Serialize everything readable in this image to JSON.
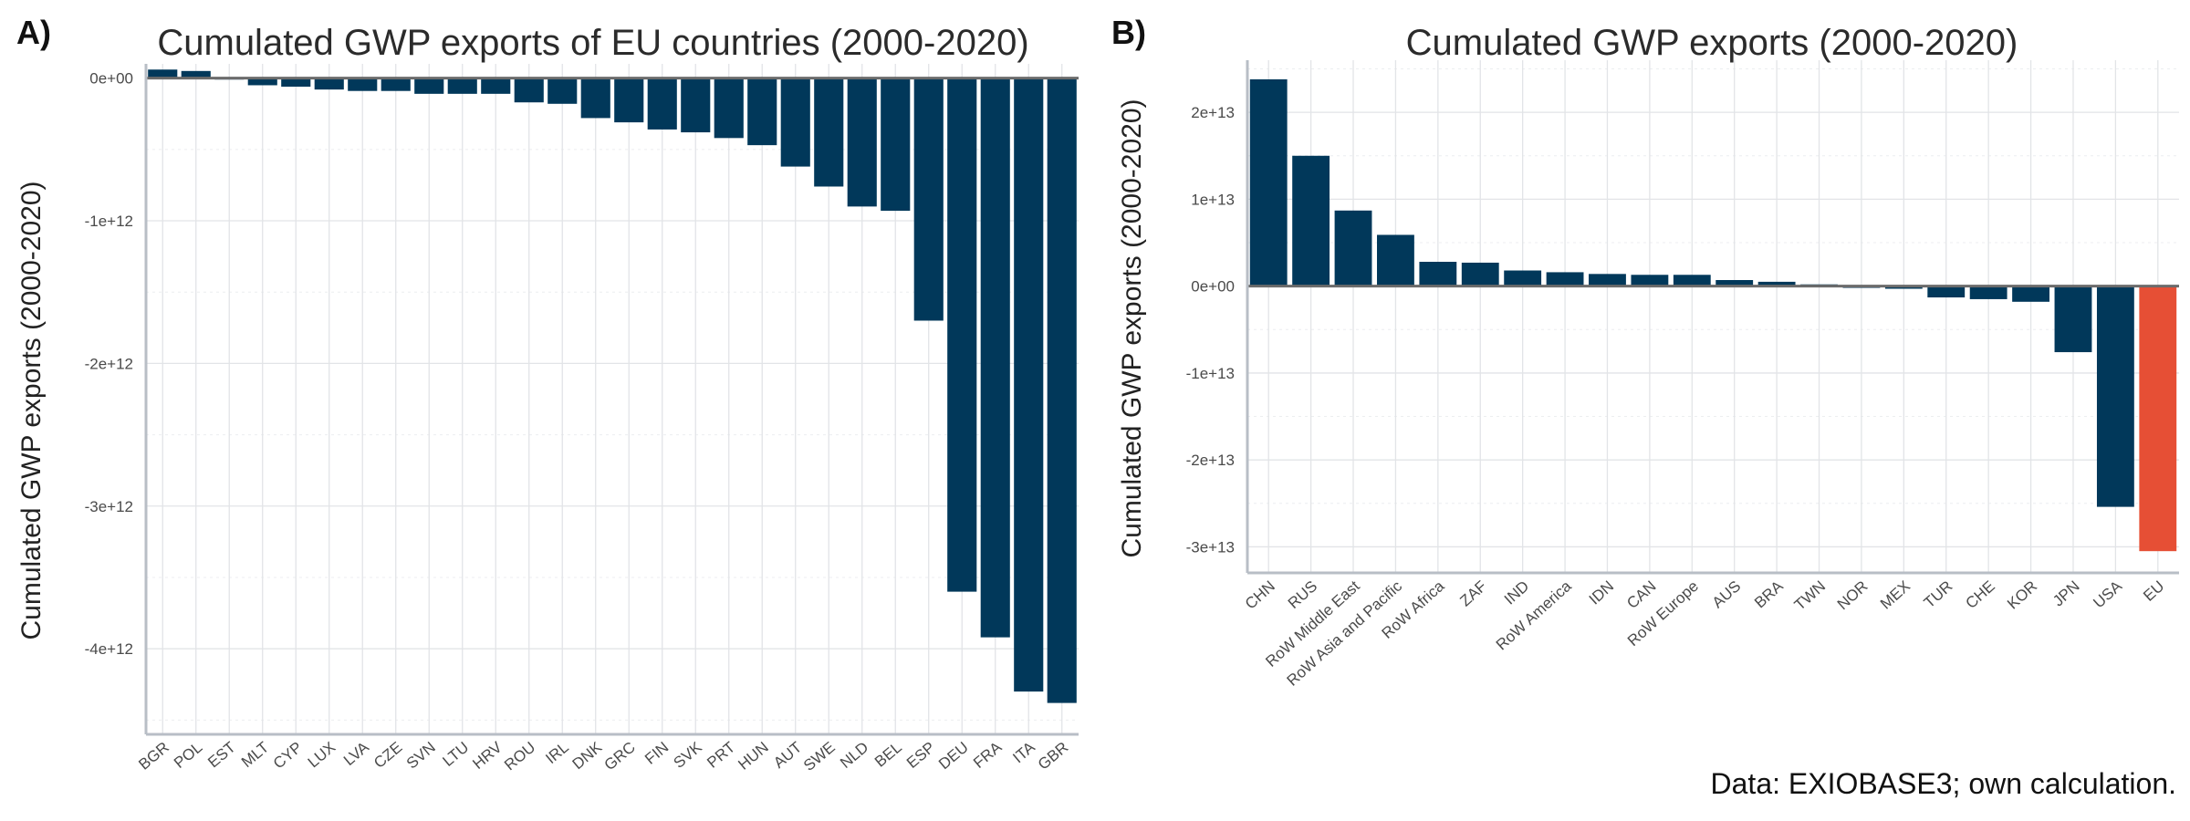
{
  "panels": [
    {
      "letter": "A)",
      "title": "Cumulated GWP exports of EU countries (2000-2020)",
      "ylabel": "Cumulated GWP exports (2000-2020)"
    },
    {
      "letter": "B)",
      "title": "Cumulated GWP exports (2000-2020)",
      "ylabel": "Cumulated GWP exports (2000-2020)"
    }
  ],
  "caption": "Data: EXIOBASE3; own calculation.",
  "colors": {
    "bar": "#01385a",
    "highlight": "#e64f35"
  },
  "chart_data": [
    {
      "type": "bar",
      "title": "Cumulated GWP exports of EU countries (2000-2020)",
      "xlabel": "",
      "ylabel": "Cumulated GWP exports (2000-2020)",
      "ylim": [
        -4600000000000.0,
        100000000000.0
      ],
      "yticks": [
        0,
        -1000000000000.0,
        -2000000000000.0,
        -3000000000000.0,
        -4000000000000.0
      ],
      "ytick_labels": [
        "0e+00",
        "-1e+12",
        "-2e+12",
        "-3e+12",
        "-4e+12"
      ],
      "grid": true,
      "categories": [
        "BGR",
        "POL",
        "EST",
        "MLT",
        "CYP",
        "LUX",
        "LVA",
        "CZE",
        "SVN",
        "LTU",
        "HRV",
        "ROU",
        "IRL",
        "DNK",
        "GRC",
        "FIN",
        "SVK",
        "PRT",
        "HUN",
        "AUT",
        "SWE",
        "NLD",
        "BEL",
        "ESP",
        "DEU",
        "FRA",
        "ITA",
        "GBR"
      ],
      "values": [
        60000000000.0,
        50000000000.0,
        -10000000000.0,
        -50000000000.0,
        -60000000000.0,
        -80000000000.0,
        -90000000000.0,
        -90000000000.0,
        -110000000000.0,
        -110000000000.0,
        -110000000000.0,
        -170000000000.0,
        -180000000000.0,
        -280000000000.0,
        -310000000000.0,
        -360000000000.0,
        -380000000000.0,
        -420000000000.0,
        -470000000000.0,
        -620000000000.0,
        -760000000000.0,
        -900000000000.0,
        -930000000000.0,
        -1700000000000.0,
        -3600000000000.0,
        -3920000000000.0,
        -4300000000000.0,
        -4380000000000.0
      ]
    },
    {
      "type": "bar",
      "title": "Cumulated GWP exports (2000-2020)",
      "xlabel": "",
      "ylabel": "Cumulated GWP exports (2000-2020)",
      "ylim": [
        -33000000000000.0,
        26000000000000.0
      ],
      "yticks": [
        20000000000000.0,
        10000000000000.0,
        0,
        -10000000000000.0,
        -20000000000000.0,
        -30000000000000.0
      ],
      "ytick_labels": [
        "2e+13",
        "1e+13",
        "0e+00",
        "-1e+13",
        "-2e+13",
        "-3e+13"
      ],
      "grid": true,
      "categories": [
        "CHN",
        "RUS",
        "RoW Middle East",
        "RoW Asia and Pacific",
        "RoW Africa",
        "ZAF",
        "IND",
        "RoW America",
        "IDN",
        "CAN",
        "RoW Europe",
        "AUS",
        "BRA",
        "TWN",
        "NOR",
        "MEX",
        "TUR",
        "CHE",
        "KOR",
        "JPN",
        "USA",
        "EU"
      ],
      "values": [
        23800000000000.0,
        15000000000000.0,
        8700000000000.0,
        5900000000000.0,
        2800000000000.0,
        2700000000000.0,
        1800000000000.0,
        1600000000000.0,
        1400000000000.0,
        1300000000000.0,
        1300000000000.0,
        700000000000.0,
        500000000000.0,
        200000000000.0,
        -200000000000.0,
        -300000000000.0,
        -1300000000000.0,
        -1500000000000.0,
        -1800000000000.0,
        -7600000000000.0,
        -25400000000000.0,
        -30500000000000.0
      ],
      "highlight": [
        "EU"
      ]
    }
  ]
}
